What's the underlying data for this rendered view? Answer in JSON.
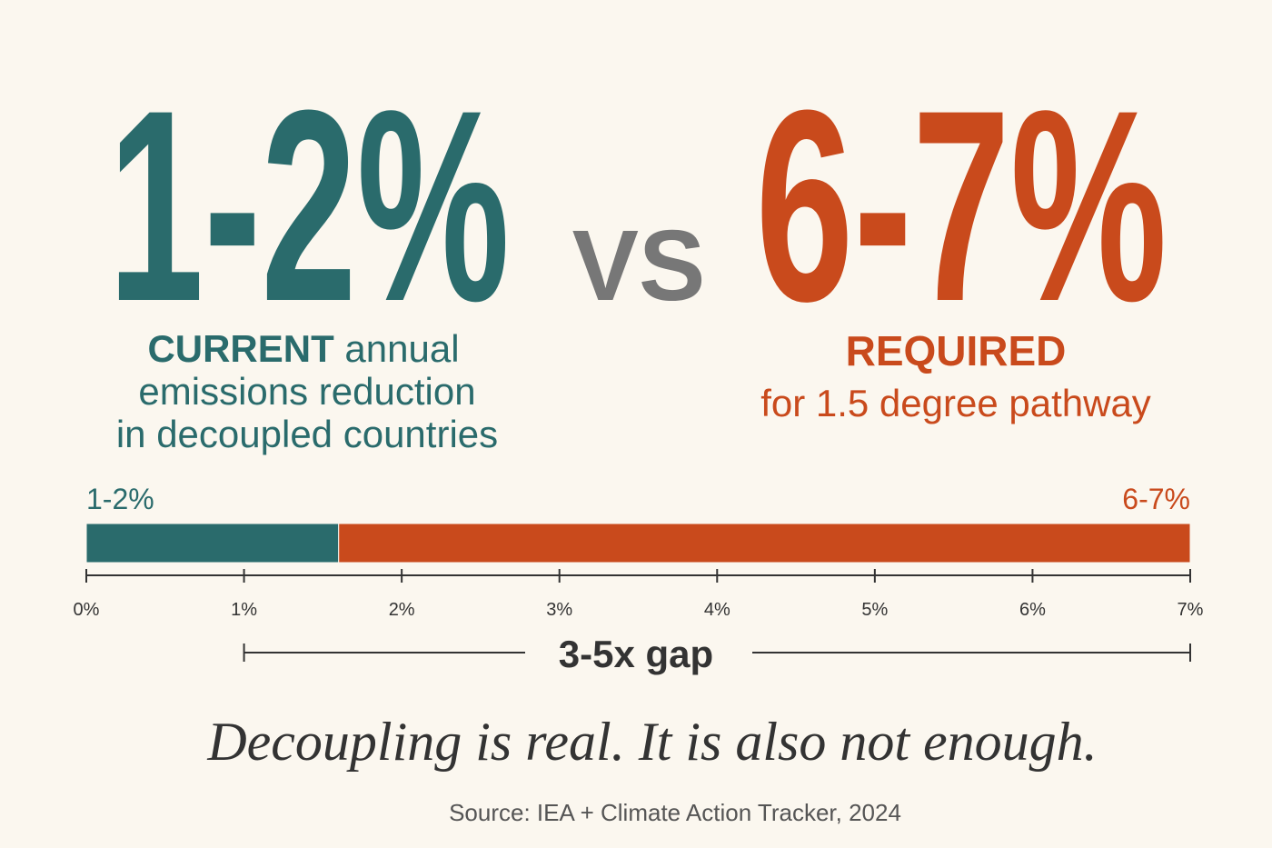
{
  "hero": {
    "left": {
      "figure": "1-2%",
      "strong": "CURRENT",
      "rest": " annual",
      "lines": [
        "emissions reduction",
        "in decoupled countries"
      ],
      "color": "#2a6b6c"
    },
    "versus": "VS",
    "right": {
      "figure": "6-7%",
      "strong": "REQUIRED",
      "lines": [
        "for 1.5 degree pathway"
      ],
      "color": "#c94a1c"
    }
  },
  "chart_data": {
    "type": "stacked-hbar",
    "series": [
      {
        "label": "1-2%",
        "color": "#2a6b6c",
        "values": [
          1.6
        ]
      },
      {
        "label": "6-7%",
        "color": "#c94a1c",
        "values": [
          5.4
        ]
      }
    ],
    "xlim": [
      0,
      7
    ],
    "xticks": [
      {
        "value": 0,
        "label": "0%"
      },
      {
        "value": 1,
        "label": "1%"
      },
      {
        "value": 2,
        "label": "2%"
      },
      {
        "value": 3,
        "label": "3%"
      },
      {
        "value": 4,
        "label": "4%"
      },
      {
        "value": 5,
        "label": "5%"
      },
      {
        "value": 6,
        "label": "6%"
      },
      {
        "value": 7,
        "label": "7%"
      }
    ],
    "gap": {
      "label": "3-5x gap",
      "from": 1,
      "to": 7
    }
  },
  "tagline": "Decoupling is real. It is also not enough.",
  "source": "Source: IEA + Climate Action Tracker, 2024"
}
